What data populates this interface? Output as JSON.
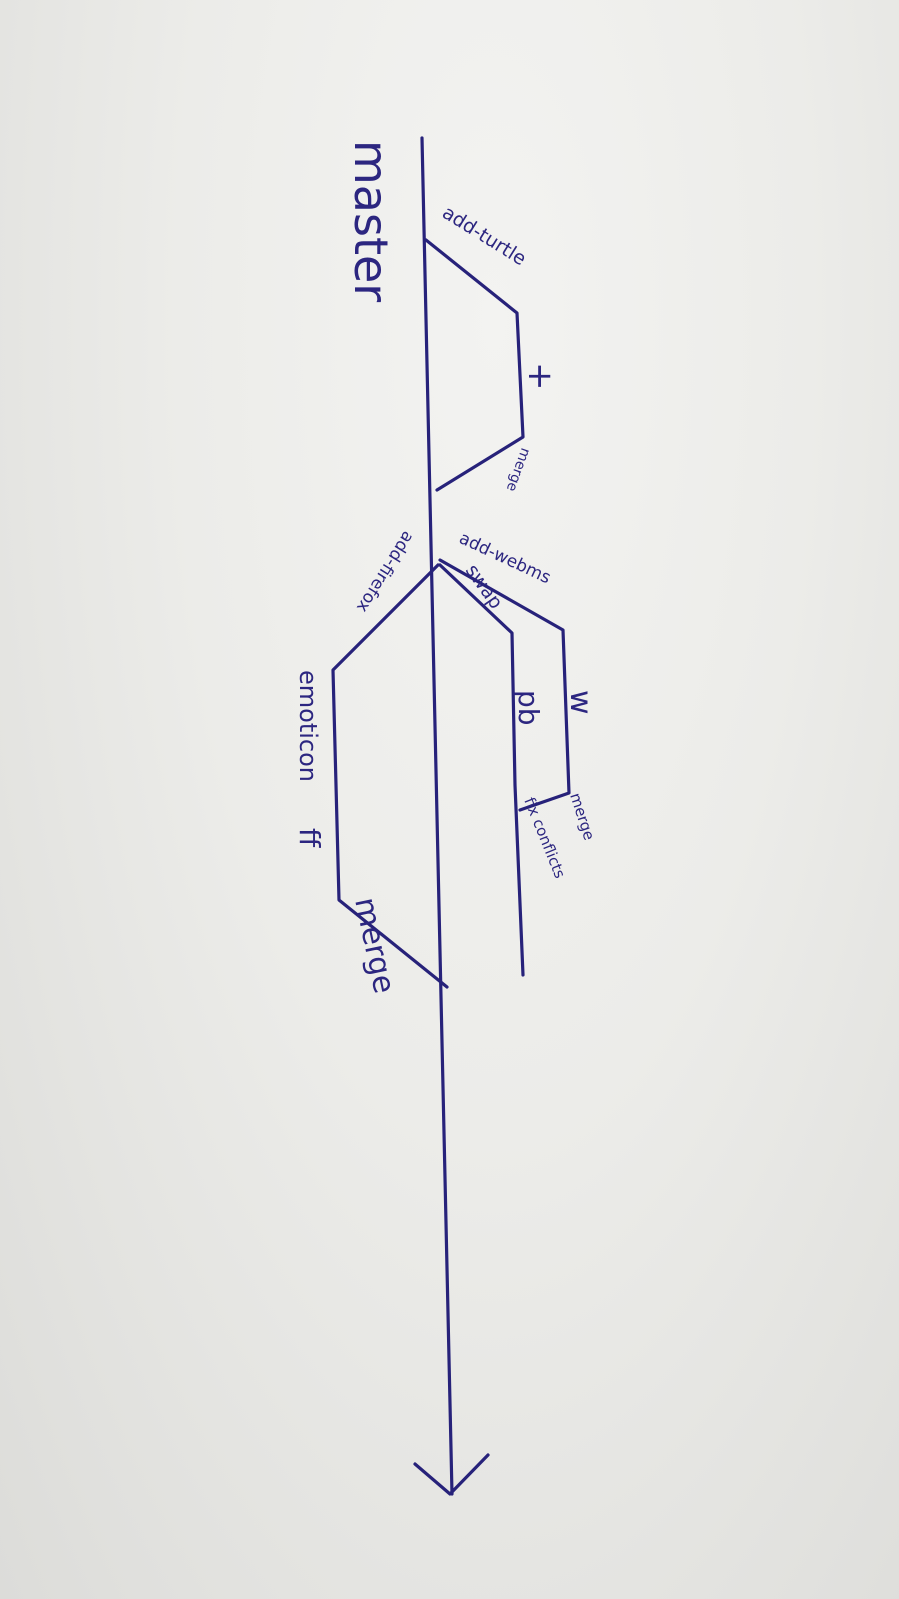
{
  "diagram": {
    "ink_color": "#27227a",
    "paper_color": "#ebebe8",
    "labels": {
      "master": "master",
      "add_turtle": "add-turtle",
      "plus": "+",
      "merge_1": "merge",
      "add_webms": "add-webms",
      "swap": "swap",
      "w": "w",
      "pb": "pb",
      "merge_2": "merge",
      "fix_conflicts": "fix conflicts",
      "add_firefox": "add-firefox",
      "emoticon": "emoticon",
      "ff": "ff",
      "merge_3": "merge"
    }
  }
}
